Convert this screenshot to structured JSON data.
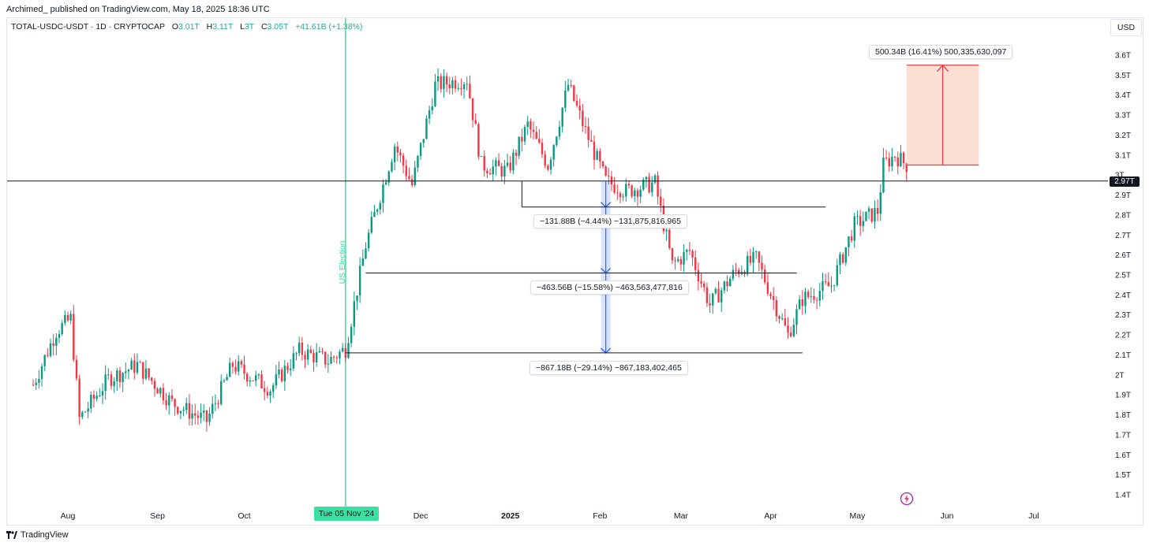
{
  "header": {
    "published": "Archimed_ published on TradingView.com, May 18, 2025 18:36 UTC"
  },
  "legend": {
    "symbol": "TOTAL-USDC-USDT · 1D · CRYPTOCAP",
    "o_label": "O",
    "o_val": "3.01T",
    "h_label": "H",
    "h_val": "3.11T",
    "l_label": "L",
    "l_val": "3T",
    "c_label": "C",
    "c_val": "3.05T",
    "change": "+41.61B (+1.38%)"
  },
  "currency_button": "USD",
  "last_price_badge": "2.97T",
  "election_label": "US Election",
  "date_badge": "Tue 05 Nov '24",
  "footer": {
    "brand": "TradingView"
  },
  "measurements": {
    "up": "500.34B (16.41%) 500,335,630,097",
    "down1": "−131.88B (−4.44%) −131,875,816,965",
    "down2": "−463.56B (−15.58%) −463,563,477,816",
    "down3": "−867.18B (−29.14%) −867,183,402,465"
  },
  "colors": {
    "up": "#089981",
    "down": "#f23645",
    "election_line": "#3ce0a0",
    "measure_blue": "#2962ff",
    "measure_red_fill": "#f8d5c4"
  },
  "chart_data": {
    "type": "candlestick",
    "y_unit": "T",
    "ylim": [
      1.35,
      3.65
    ],
    "y_ticks": [
      "3.6T",
      "3.5T",
      "3.4T",
      "3.3T",
      "3.2T",
      "3.1T",
      "3T",
      "2.9T",
      "2.8T",
      "2.7T",
      "2.6T",
      "2.5T",
      "2.4T",
      "2.3T",
      "2.2T",
      "2.1T",
      "2T",
      "1.9T",
      "1.8T",
      "1.7T",
      "1.6T",
      "1.5T",
      "1.4T"
    ],
    "x_ticks": [
      "Aug",
      "Sep",
      "Oct",
      "Dec",
      "2025",
      "Feb",
      "Mar",
      "Apr",
      "May",
      "Jun",
      "Jul"
    ],
    "horizontal_line": 2.97,
    "annotation_levels": [
      2.84,
      2.51,
      2.11
    ],
    "annotation_anchor_level": 2.97,
    "target_zone": [
      3.05,
      3.55
    ],
    "close_path": [
      {
        "date": "2024-07-20",
        "value": 1.95
      },
      {
        "date": "2024-07-28",
        "value": 2.22
      },
      {
        "date": "2024-08-02",
        "value": 2.28
      },
      {
        "date": "2024-08-05",
        "value": 1.78
      },
      {
        "date": "2024-08-15",
        "value": 1.98
      },
      {
        "date": "2024-08-25",
        "value": 2.05
      },
      {
        "date": "2024-09-06",
        "value": 1.86
      },
      {
        "date": "2024-09-18",
        "value": 1.77
      },
      {
        "date": "2024-09-27",
        "value": 2.05
      },
      {
        "date": "2024-10-10",
        "value": 1.93
      },
      {
        "date": "2024-10-20",
        "value": 2.12
      },
      {
        "date": "2024-10-30",
        "value": 2.07
      },
      {
        "date": "2024-11-05",
        "value": 2.13
      },
      {
        "date": "2024-11-12",
        "value": 2.65
      },
      {
        "date": "2024-11-22",
        "value": 3.15
      },
      {
        "date": "2024-11-28",
        "value": 2.95
      },
      {
        "date": "2024-12-06",
        "value": 3.45
      },
      {
        "date": "2024-12-17",
        "value": 3.48
      },
      {
        "date": "2024-12-22",
        "value": 3.05
      },
      {
        "date": "2024-12-31",
        "value": 3.02
      },
      {
        "date": "2025-01-07",
        "value": 3.25
      },
      {
        "date": "2025-01-14",
        "value": 3.05
      },
      {
        "date": "2025-01-21",
        "value": 3.45
      },
      {
        "date": "2025-01-27",
        "value": 3.22
      },
      {
        "date": "2025-02-03",
        "value": 2.97
      },
      {
        "date": "2025-02-10",
        "value": 2.92
      },
      {
        "date": "2025-02-20",
        "value": 2.96
      },
      {
        "date": "2025-02-26",
        "value": 2.55
      },
      {
        "date": "2025-03-04",
        "value": 2.62
      },
      {
        "date": "2025-03-11",
        "value": 2.35
      },
      {
        "date": "2025-03-20",
        "value": 2.52
      },
      {
        "date": "2025-03-27",
        "value": 2.58
      },
      {
        "date": "2025-04-07",
        "value": 2.2
      },
      {
        "date": "2025-04-12",
        "value": 2.38
      },
      {
        "date": "2025-04-22",
        "value": 2.45
      },
      {
        "date": "2025-04-30",
        "value": 2.75
      },
      {
        "date": "2025-05-08",
        "value": 2.82
      },
      {
        "date": "2025-05-10",
        "value": 3.05
      },
      {
        "date": "2025-05-14",
        "value": 3.1
      },
      {
        "date": "2025-05-18",
        "value": 3.05
      }
    ]
  }
}
